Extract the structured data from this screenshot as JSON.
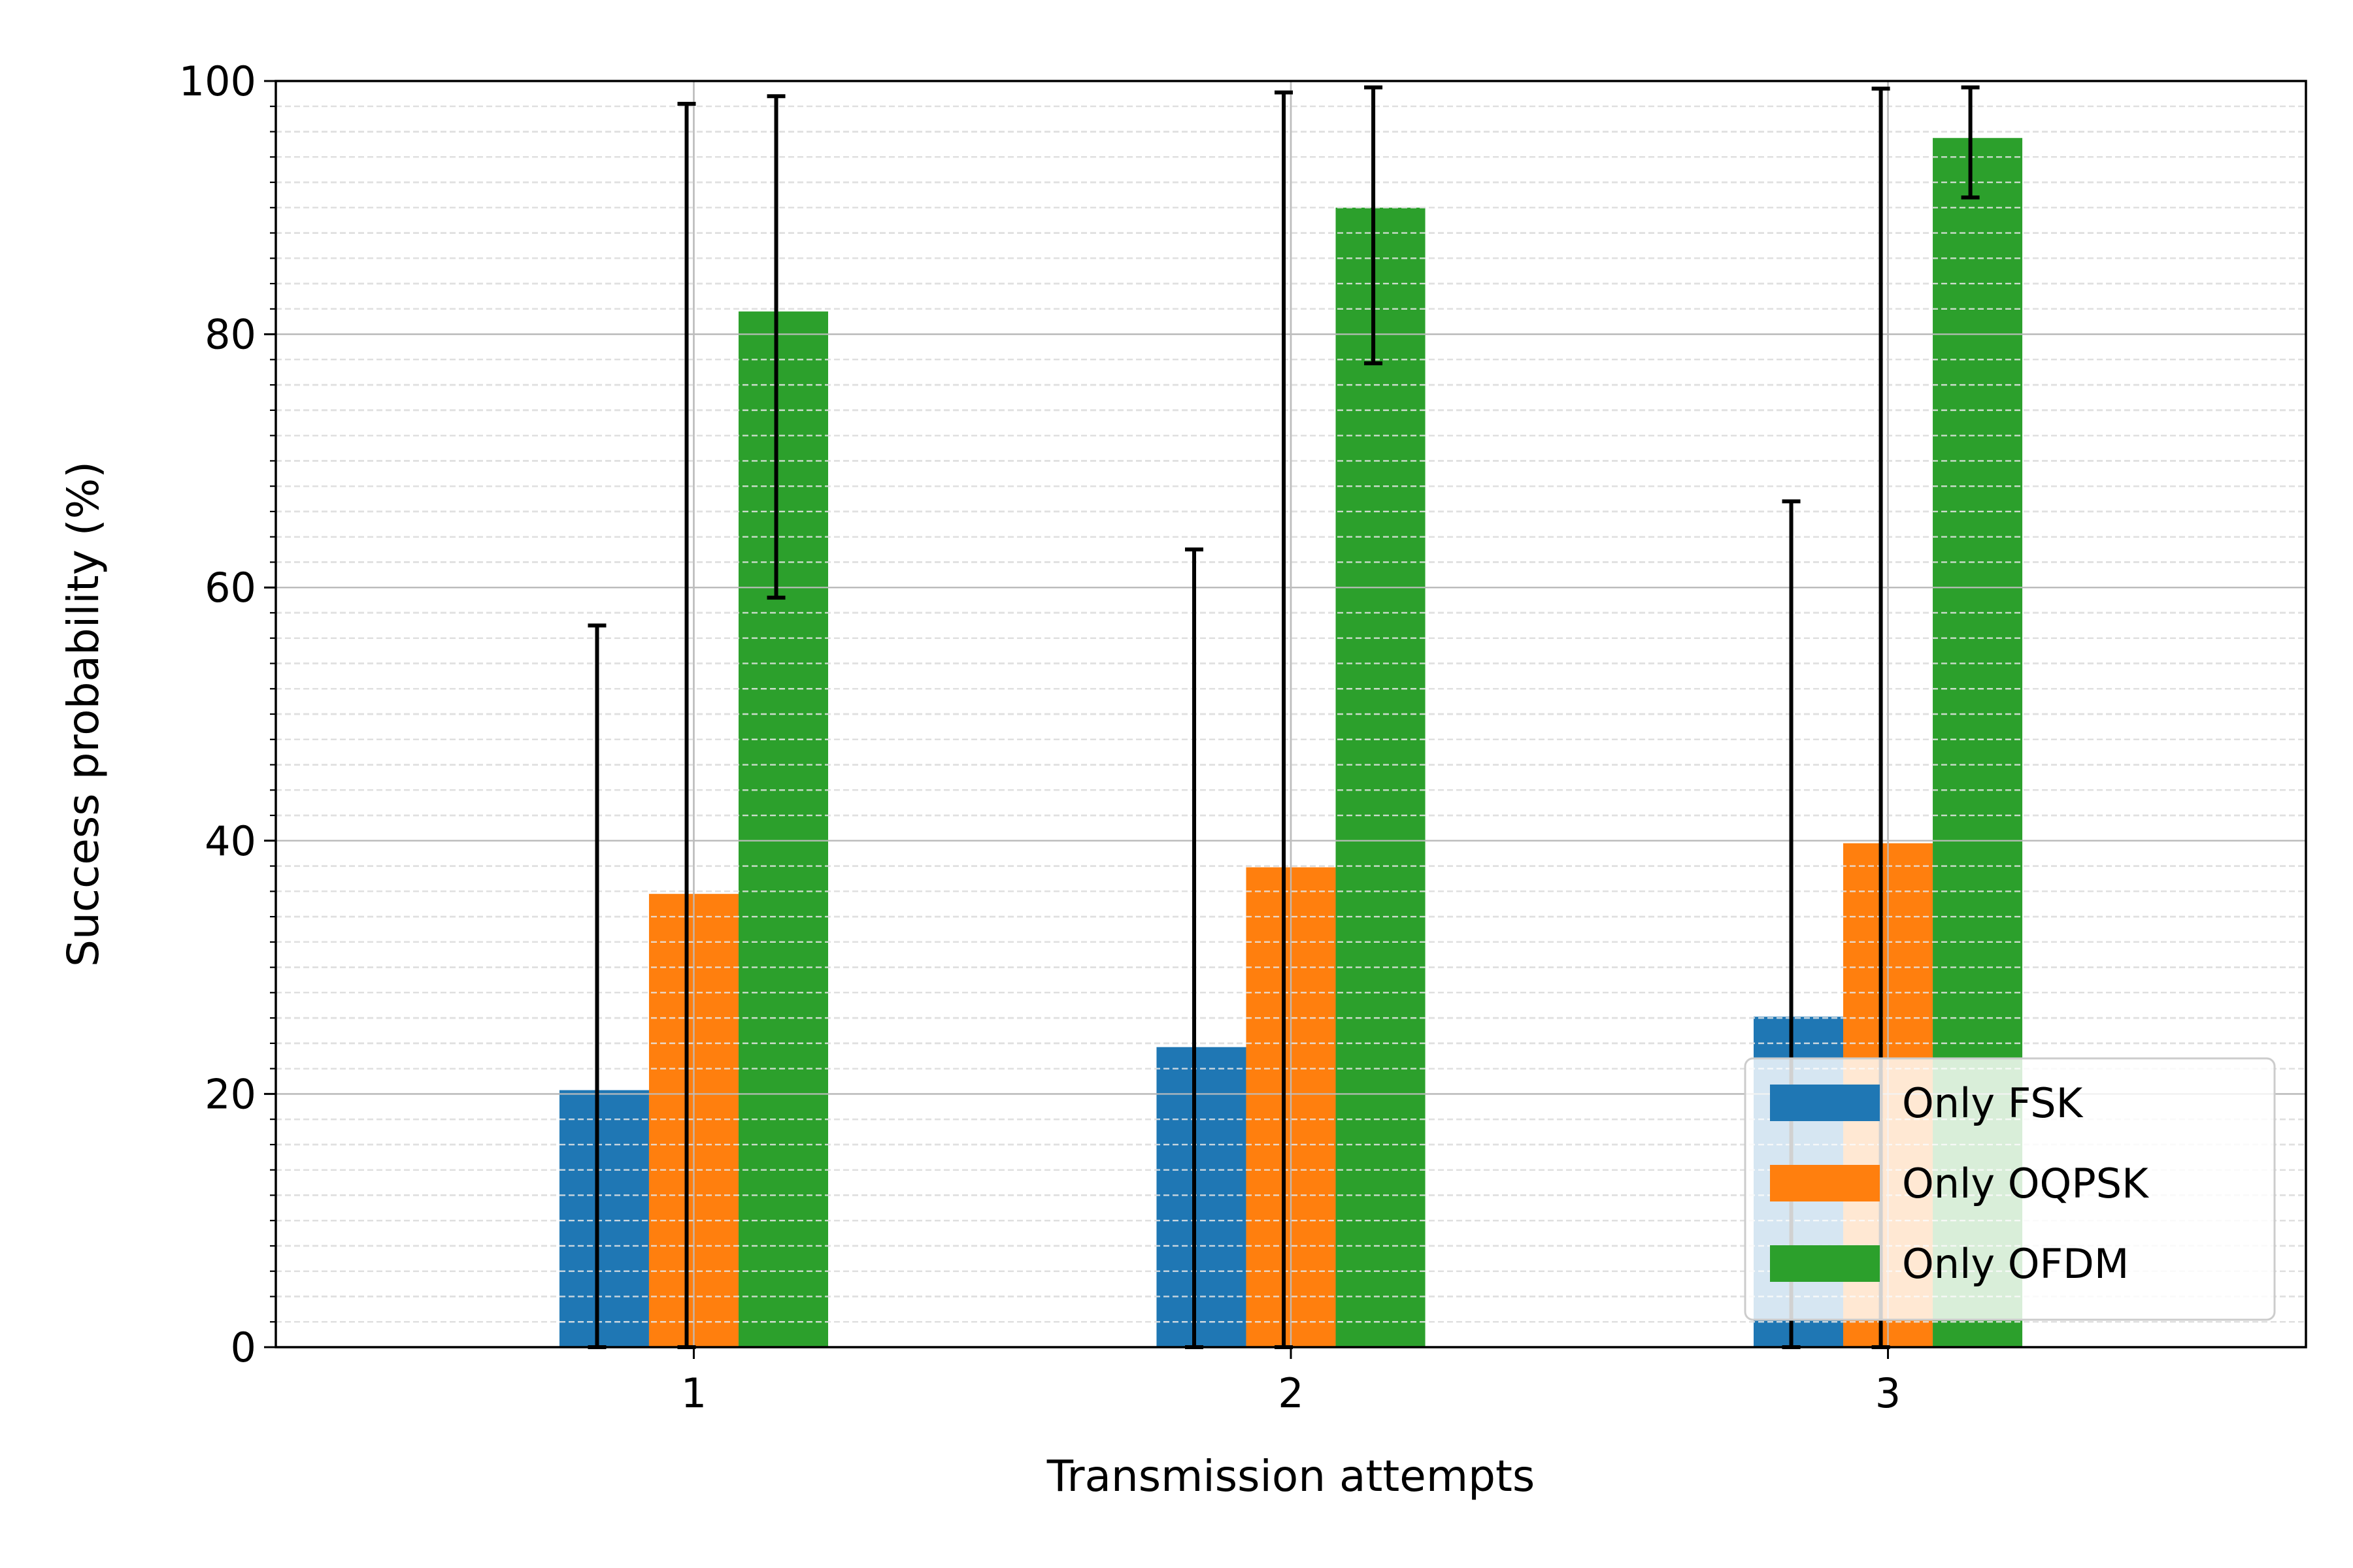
{
  "chart_data": {
    "type": "bar",
    "xlabel": "Transmission attempts",
    "ylabel": "Success probability (%)",
    "categories": [
      "1",
      "2",
      "3"
    ],
    "ylim": [
      0,
      100
    ],
    "yticks": [
      0,
      20,
      40,
      60,
      80,
      100
    ],
    "grid": {
      "major": true,
      "minor": true,
      "minor_step": 2
    },
    "legend_position": "lower-right",
    "series": [
      {
        "name": "Only FSK",
        "color": "#1f77b4",
        "values": [
          20.3,
          23.7,
          26.1
        ],
        "err_low": [
          0,
          0,
          0
        ],
        "err_high": [
          57.0,
          63.0,
          66.8
        ]
      },
      {
        "name": "Only OQPSK",
        "color": "#ff7f0e",
        "values": [
          35.8,
          37.9,
          39.8
        ],
        "err_low": [
          0,
          0,
          0
        ],
        "err_high": [
          98.2,
          99.1,
          99.4
        ]
      },
      {
        "name": "Only OFDM",
        "color": "#2ca02c",
        "values": [
          81.8,
          90.0,
          95.5
        ],
        "err_low": [
          59.2,
          77.7,
          90.8
        ],
        "err_high": [
          98.8,
          99.5,
          99.5
        ]
      }
    ]
  }
}
